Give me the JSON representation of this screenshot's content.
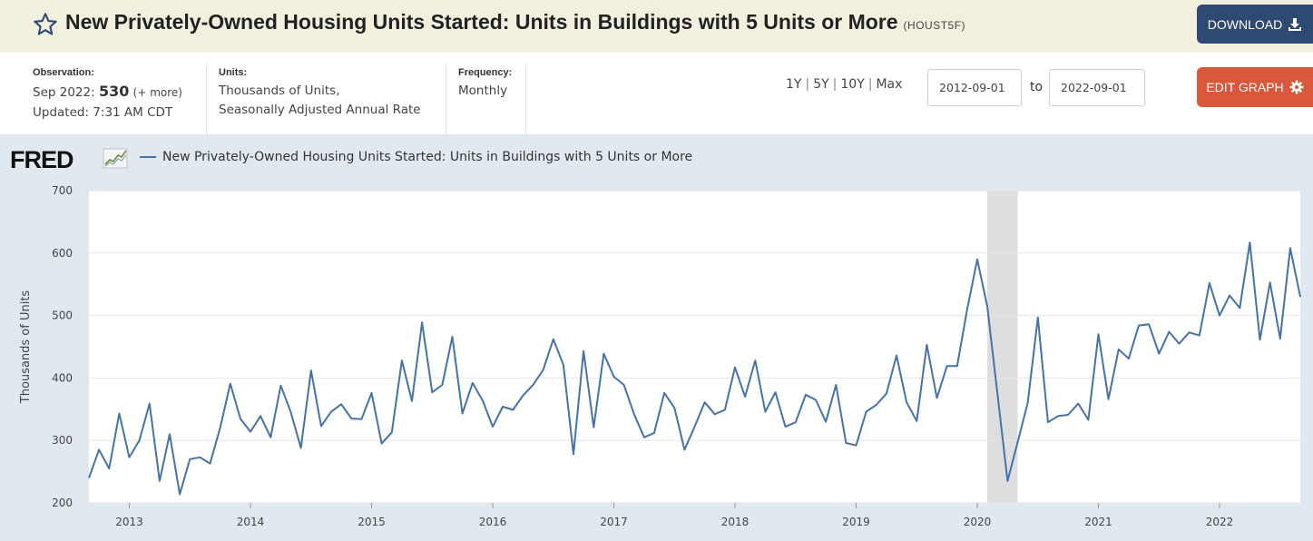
{
  "header": {
    "title": "New Privately-Owned Housing Units Started: Units in Buildings with 5 Units or More",
    "series_id": "(HOUST5F)",
    "download_label": "DOWNLOAD"
  },
  "info": {
    "observation_label": "Observation:",
    "observation_date": "Sep 2022:",
    "observation_value": "530",
    "observation_more": "(+ more)",
    "updated": "Updated: 7:31 AM CDT",
    "units_label": "Units:",
    "units_line1": "Thousands of Units,",
    "units_line2": "Seasonally Adjusted Annual Rate",
    "frequency_label": "Frequency:",
    "frequency_value": "Monthly"
  },
  "ranges": [
    "1Y",
    "5Y",
    "10Y",
    "Max"
  ],
  "date_from": "2012-09-01",
  "date_to": "2022-09-01",
  "to_label": "to",
  "edit_label": "EDIT GRAPH",
  "logo": "FRED",
  "colors": {
    "series": "#4572a7",
    "recession": "#dedede",
    "download": "#2e4a72",
    "edit": "#d9573b"
  },
  "chart_data": {
    "type": "line",
    "title": "",
    "ylabel": "Thousands of Units",
    "xlabel": "",
    "ylim": [
      200,
      700
    ],
    "yticks": [
      200,
      300,
      400,
      500,
      600,
      700
    ],
    "xticks": [
      "2013",
      "2014",
      "2015",
      "2016",
      "2017",
      "2018",
      "2019",
      "2020",
      "2021",
      "2022"
    ],
    "x_start": "2012-09",
    "x_end": "2022-09",
    "recession": [
      "2020-02",
      "2020-04"
    ],
    "series": [
      {
        "name": "New Privately-Owned Housing Units Started: Units in Buildings with 5 Units or More",
        "values": [
          240,
          285,
          255,
          343,
          273,
          300,
          359,
          235,
          310,
          214,
          270,
          273,
          263,
          320,
          391,
          335,
          314,
          339,
          305,
          388,
          345,
          288,
          412,
          323,
          346,
          358,
          335,
          334,
          376,
          295,
          313,
          428,
          363,
          489,
          377,
          389,
          466,
          343,
          392,
          364,
          322,
          354,
          349,
          372,
          389,
          413,
          462,
          421,
          278,
          443,
          321,
          439,
          402,
          389,
          342,
          305,
          312,
          376,
          352,
          285,
          322,
          361,
          342,
          349,
          417,
          370,
          428,
          346,
          377,
          322,
          329,
          373,
          365,
          330,
          389,
          296,
          292,
          346,
          357,
          375,
          436,
          361,
          331,
          453,
          368,
          419,
          419,
          510,
          590,
          514,
          374,
          235,
          297,
          360,
          497,
          329,
          339,
          341,
          359,
          333,
          470,
          366,
          446,
          431,
          484,
          486,
          439,
          474,
          455,
          473,
          468,
          552,
          500,
          532,
          512,
          617,
          461,
          553,
          463,
          608,
          530
        ]
      }
    ]
  }
}
